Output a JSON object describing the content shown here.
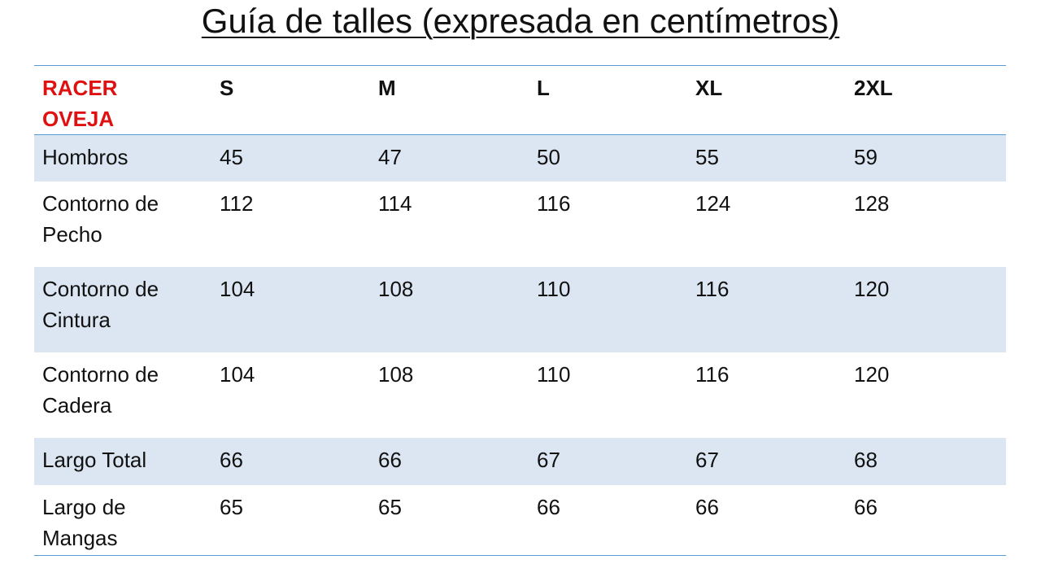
{
  "title": "Guía de talles (expresada en centímetros)",
  "table": {
    "header": [
      "RACER\nOVEJA",
      "S",
      "M",
      "L",
      "XL",
      "2XL"
    ],
    "rows": [
      [
        "Hombros",
        "45",
        "47",
        "50",
        "55",
        "59"
      ],
      [
        "Contorno de\nPecho",
        "112",
        "114",
        "116",
        "124",
        "128"
      ],
      [
        "Contorno de\nCintura",
        "104",
        "108",
        "110",
        "116",
        "120"
      ],
      [
        "Contorno de\nCadera",
        "104",
        "108",
        "110",
        "116",
        "120"
      ],
      [
        "Largo Total",
        "66",
        "66",
        "67",
        "67",
        "68"
      ],
      [
        "Largo de\nMangas",
        "65",
        "65",
        "66",
        "66",
        "66"
      ]
    ]
  }
}
